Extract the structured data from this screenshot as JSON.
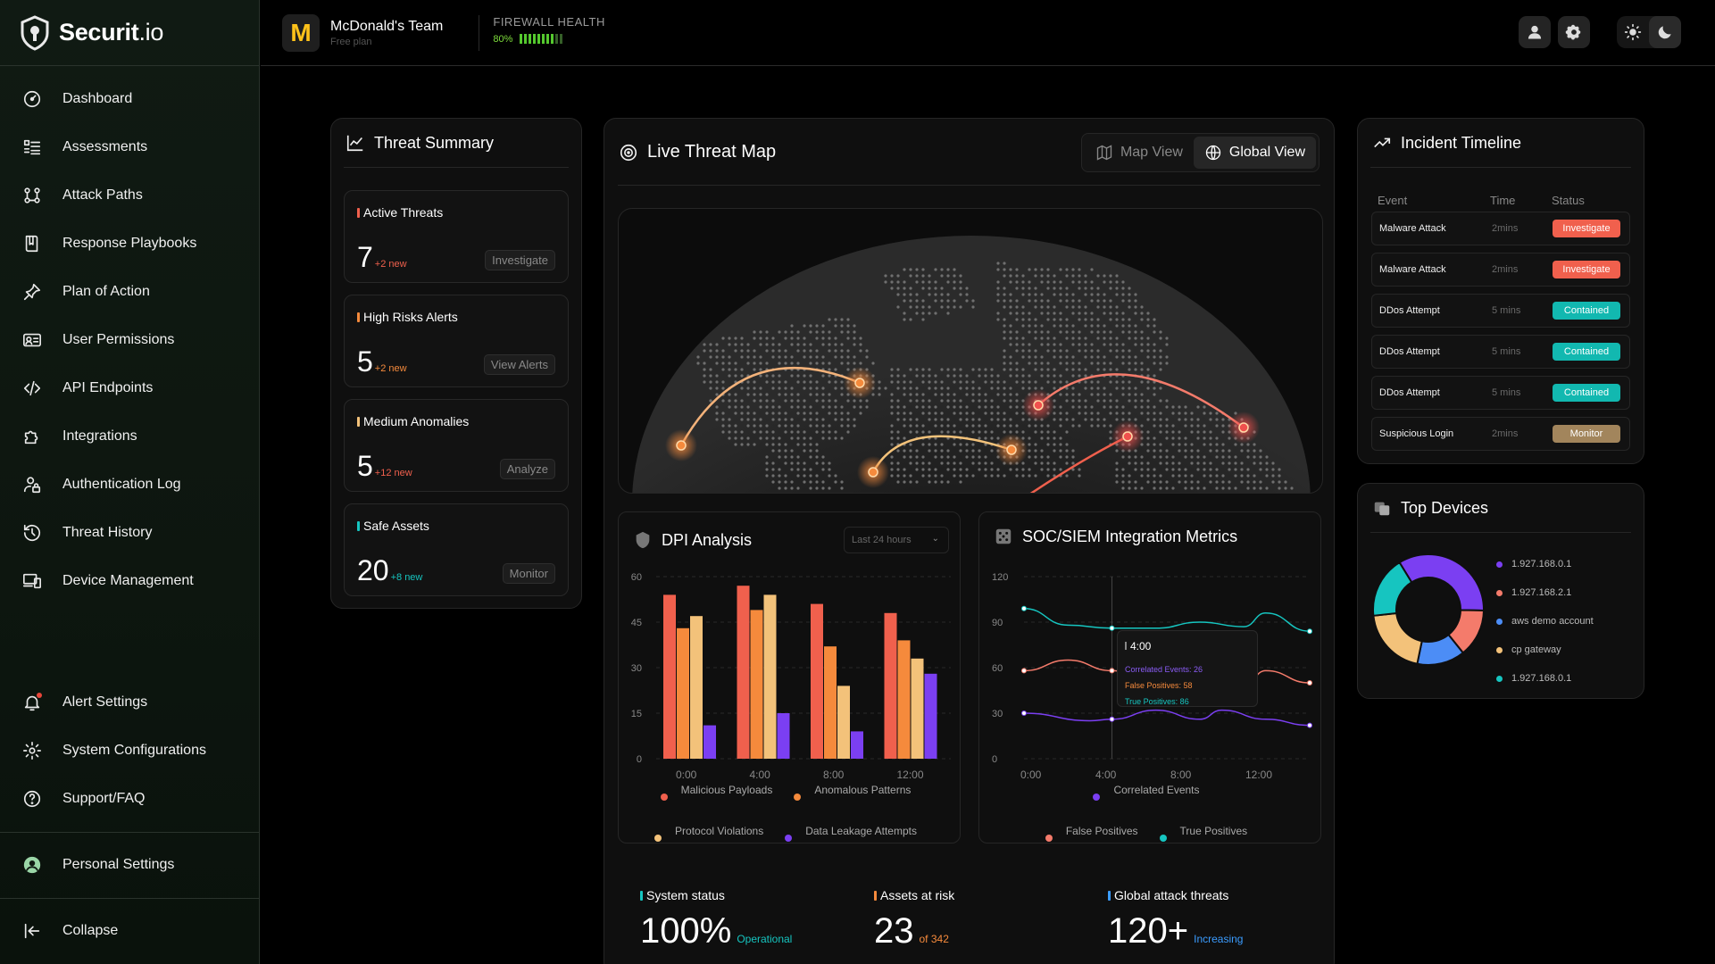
{
  "brand": {
    "name_bold": "Securit",
    "name_suffix": ".io"
  },
  "sidebar": {
    "items": [
      {
        "label": "Dashboard",
        "icon": "dashboard-icon"
      },
      {
        "label": "Assessments",
        "icon": "list-icon"
      },
      {
        "label": "Attack Paths",
        "icon": "path-icon"
      },
      {
        "label": "Response Playbooks",
        "icon": "book-icon"
      },
      {
        "label": "Plan of Action",
        "icon": "pin-icon"
      },
      {
        "label": "User Permissions",
        "icon": "user-card-icon"
      },
      {
        "label": "API Endpoints",
        "icon": "code-icon"
      },
      {
        "label": "Integrations",
        "icon": "puzzle-icon"
      },
      {
        "label": "Authentication Log",
        "icon": "lock-user-icon"
      },
      {
        "label": "Threat History",
        "icon": "history-icon"
      },
      {
        "label": "Device Management",
        "icon": "devices-icon"
      }
    ],
    "bottom": [
      {
        "label": "Alert Settings",
        "icon": "bell-icon"
      },
      {
        "label": "System Configurations",
        "icon": "gear-icon"
      },
      {
        "label": "Support/FAQ",
        "icon": "help-icon"
      }
    ],
    "personal": "Personal Settings",
    "collapse": "Collapse"
  },
  "header": {
    "team_name": "McDonald's Team",
    "team_plan": "Free plan",
    "firewall_title": "FIREWALL HEALTH",
    "firewall_pct": "80%",
    "firewall_value": 0.8
  },
  "threat_summary": {
    "title": "Threat Summary",
    "cards": [
      {
        "label": "Active Threats",
        "value": "7",
        "new": "+2 new",
        "button": "Investigate",
        "color": "#f0604d"
      },
      {
        "label": "High Risks Alerts",
        "value": "5",
        "new": "+2 new",
        "button": "View Alerts",
        "color": "#f58a3c"
      },
      {
        "label": "Medium Anomalies",
        "value": "5",
        "new": "+12 new",
        "button": "Analyze",
        "color": "#f3c27a"
      },
      {
        "label": "Safe Assets",
        "value": "20",
        "new": "+8 new",
        "button": "Monitor",
        "color": "#16c5c0"
      }
    ]
  },
  "map": {
    "title": "Live Threat Map",
    "tab_map": "Map View",
    "tab_global": "Global View"
  },
  "dpi": {
    "title": "DPI Analysis",
    "range": "Last 24 hours",
    "legend": [
      "Malicious Payloads",
      "Anomalous Patterns",
      "Protocol Violations",
      "Data Leakage Attempts"
    ]
  },
  "soc": {
    "title": "SOC/SIEM Integration Metrics",
    "legend": [
      "Correlated Events",
      "False Positives",
      "True Positives"
    ],
    "tooltip": {
      "time": "4:00",
      "correlated": "Correlated Events: 26",
      "false_pos": "False Positives: 58",
      "true_pos": "True Positives: 86"
    }
  },
  "stats": [
    {
      "label": "System status",
      "value": "100%",
      "sub": "Operational",
      "color": "#16c5c0"
    },
    {
      "label": "Assets at risk",
      "value": "23",
      "sub": "of 342",
      "color": "#f58a3c"
    },
    {
      "label": "Global attack threats",
      "value": "120+",
      "sub": "Increasing",
      "color": "#3b9cff"
    }
  ],
  "timeline": {
    "title": "Incident Timeline",
    "col_event": "Event",
    "col_time": "Time",
    "col_status": "Status",
    "rows": [
      {
        "event": "Malware Attack",
        "time": "2mins",
        "status": "Investigate",
        "color": "#f0604d"
      },
      {
        "event": "Malware Attack",
        "time": "2mins",
        "status": "Investigate",
        "color": "#f0604d"
      },
      {
        "event": "DDos Attempt",
        "time": "5 mins",
        "status": "Contained",
        "color": "#12b8b0"
      },
      {
        "event": "DDos Attempt",
        "time": "5 mins",
        "status": "Contained",
        "color": "#12b8b0"
      },
      {
        "event": "DDos Attempt",
        "time": "5 mins",
        "status": "Contained",
        "color": "#12b8b0"
      },
      {
        "event": "Suspicious Login",
        "time": "2mins",
        "status": "Monitor",
        "color": "#a2855c"
      }
    ]
  },
  "devices": {
    "title": "Top Devices",
    "items": [
      {
        "label": "1.927.168.0.1",
        "color": "#7b3ff2"
      },
      {
        "label": "1.927.168.2.1",
        "color": "#f47b6b"
      },
      {
        "label": "aws demo account",
        "color": "#4c8df6"
      },
      {
        "label": "cp gateway",
        "color": "#f3c27a"
      },
      {
        "label": "1.927.168.0.1",
        "color": "#16c5c0"
      }
    ]
  },
  "chart_data": [
    {
      "type": "bar",
      "title": "DPI Analysis",
      "categories": [
        "0:00",
        "4:00",
        "8:00",
        "12:00"
      ],
      "ylim": [
        0,
        60
      ],
      "yticks": [
        0,
        15,
        30,
        45,
        60
      ],
      "series": [
        {
          "name": "Malicious Payloads",
          "color": "#f0604d",
          "values": [
            54,
            57,
            51,
            48
          ]
        },
        {
          "name": "Anomalous Patterns",
          "color": "#f58a3c",
          "values": [
            43,
            49,
            37,
            39
          ]
        },
        {
          "name": "Protocol Violations",
          "color": "#f3c27a",
          "values": [
            47,
            54,
            24,
            33
          ]
        },
        {
          "name": "Data Leakage Attempts",
          "color": "#7b3ff2",
          "values": [
            11,
            15,
            9,
            28
          ]
        }
      ]
    },
    {
      "type": "line",
      "title": "SOC/SIEM Integration Metrics",
      "x": [
        "0:00",
        "4:00",
        "8:00",
        "12:00"
      ],
      "ylim": [
        0,
        120
      ],
      "yticks": [
        0,
        30,
        60,
        90,
        120
      ],
      "series": [
        {
          "name": "Correlated Events",
          "color": "#7b3ff2",
          "points": [
            [
              0,
              30
            ],
            [
              3,
              25
            ],
            [
              4,
              26
            ],
            [
              6,
              32
            ],
            [
              8,
              26
            ],
            [
              9,
              32
            ],
            [
              11,
              26
            ],
            [
              13,
              22
            ]
          ]
        },
        {
          "name": "False Positives",
          "color": "#f47b6b",
          "points": [
            [
              0,
              58
            ],
            [
              2,
              65
            ],
            [
              4,
              58
            ],
            [
              6,
              50
            ],
            [
              8,
              45
            ],
            [
              10,
              48
            ],
            [
              11,
              58
            ],
            [
              13,
              50
            ]
          ]
        },
        {
          "name": "True Positives",
          "color": "#16c5c0",
          "points": [
            [
              0,
              99
            ],
            [
              2,
              88
            ],
            [
              4,
              86
            ],
            [
              6,
              86
            ],
            [
              8,
              90
            ],
            [
              10,
              87
            ],
            [
              11,
              96
            ],
            [
              13,
              84
            ]
          ]
        }
      ],
      "highlight_x": 4
    },
    {
      "type": "pie",
      "title": "Top Devices",
      "labels": [
        "1.927.168.0.1",
        "1.927.168.2.1",
        "aws demo account",
        "cp gateway",
        "1.927.168.0.1"
      ],
      "values": [
        34,
        14,
        14,
        20,
        18
      ],
      "colors": [
        "#7b3ff2",
        "#f47b6b",
        "#4c8df6",
        "#f3c27a",
        "#16c5c0"
      ]
    }
  ]
}
